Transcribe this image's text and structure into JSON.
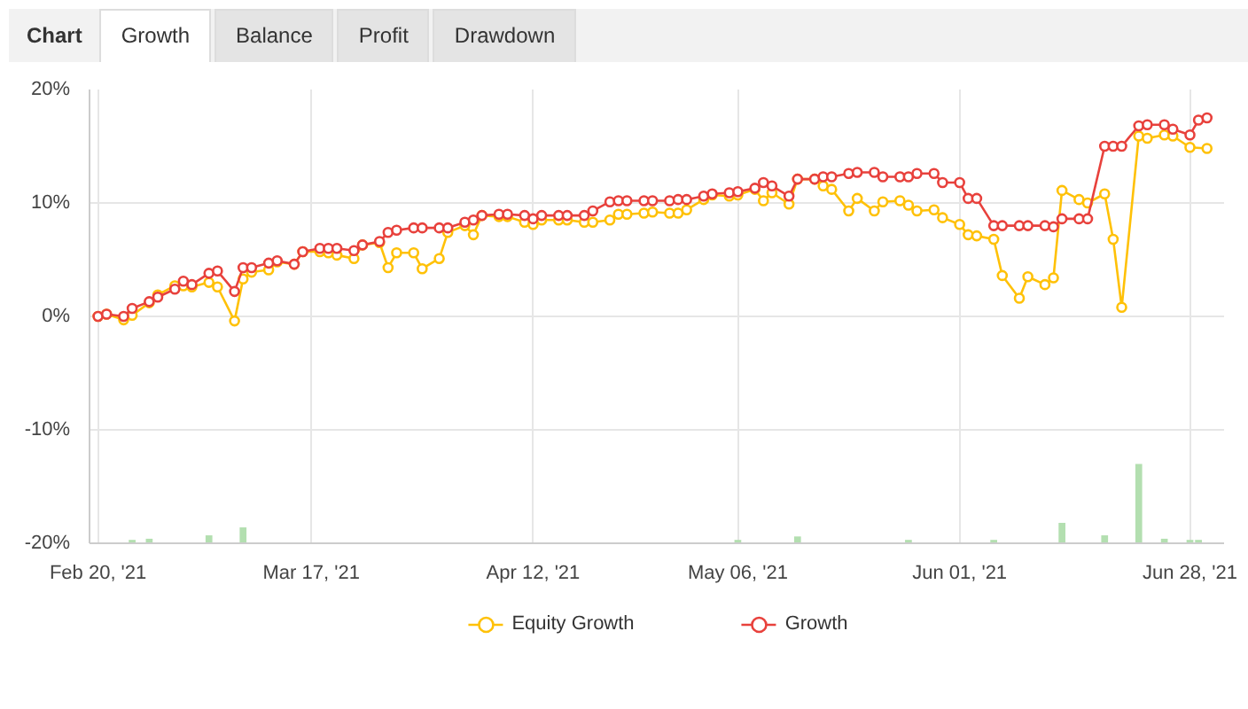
{
  "chart_data": {
    "type": "line",
    "title": "Chart",
    "annotations": [
      "Growth",
      "Balance",
      "Profit",
      "Drawdown"
    ],
    "x": [
      "2021-02-20",
      "2021-02-21",
      "2021-02-23",
      "2021-02-24",
      "2021-02-26",
      "2021-02-27",
      "2021-03-01",
      "2021-03-02",
      "2021-03-03",
      "2021-03-05",
      "2021-03-06",
      "2021-03-08",
      "2021-03-09",
      "2021-03-10",
      "2021-03-12",
      "2021-03-13",
      "2021-03-15",
      "2021-03-16",
      "2021-03-18",
      "2021-03-19",
      "2021-03-20",
      "2021-03-22",
      "2021-03-23",
      "2021-03-25",
      "2021-03-26",
      "2021-03-27",
      "2021-03-29",
      "2021-03-30",
      "2021-04-01",
      "2021-04-02",
      "2021-04-04",
      "2021-04-05",
      "2021-04-06",
      "2021-04-08",
      "2021-04-09",
      "2021-04-11",
      "2021-04-12",
      "2021-04-13",
      "2021-04-15",
      "2021-04-16",
      "2021-04-18",
      "2021-04-19",
      "2021-04-21",
      "2021-04-22",
      "2021-04-23",
      "2021-04-25",
      "2021-04-26",
      "2021-04-28",
      "2021-04-29",
      "2021-04-30",
      "2021-05-02",
      "2021-05-03",
      "2021-05-05",
      "2021-05-06",
      "2021-05-08",
      "2021-05-09",
      "2021-05-10",
      "2021-05-12",
      "2021-05-13",
      "2021-05-15",
      "2021-05-16",
      "2021-05-17",
      "2021-05-19",
      "2021-05-20",
      "2021-05-22",
      "2021-05-23",
      "2021-05-25",
      "2021-05-26",
      "2021-05-27",
      "2021-05-29",
      "2021-05-30",
      "2021-06-01",
      "2021-06-02",
      "2021-06-03",
      "2021-06-05",
      "2021-06-06",
      "2021-06-08",
      "2021-06-09",
      "2021-06-11",
      "2021-06-12",
      "2021-06-13",
      "2021-06-15",
      "2021-06-16",
      "2021-06-18",
      "2021-06-19",
      "2021-06-20",
      "2021-06-22",
      "2021-06-23",
      "2021-06-25",
      "2021-06-26",
      "2021-06-28",
      "2021-06-29",
      "2021-06-30"
    ],
    "series": [
      {
        "name": "Equity Growth",
        "color": "#ffc107",
        "values": [
          0.0,
          0.2,
          -0.3,
          0.1,
          1.2,
          1.9,
          2.7,
          2.7,
          2.6,
          3.0,
          2.6,
          -0.4,
          3.3,
          3.9,
          4.1,
          4.8,
          4.6,
          5.7,
          5.7,
          5.6,
          5.4,
          5.1,
          6.3,
          6.5,
          4.3,
          5.6,
          5.6,
          4.2,
          5.1,
          7.4,
          8.0,
          7.2,
          8.9,
          8.8,
          8.8,
          8.3,
          8.1,
          8.5,
          8.5,
          8.5,
          8.3,
          8.3,
          8.5,
          9.0,
          9.0,
          9.1,
          9.2,
          9.1,
          9.1,
          9.4,
          10.3,
          10.7,
          10.6,
          10.7,
          11.2,
          10.2,
          10.9,
          9.9,
          12.1,
          12.1,
          11.5,
          11.2,
          9.3,
          10.4,
          9.3,
          10.1,
          10.2,
          9.8,
          9.3,
          9.4,
          8.7,
          8.1,
          7.2,
          7.1,
          6.8,
          3.6,
          1.6,
          3.5,
          2.8,
          3.4,
          11.1,
          10.3,
          10.0,
          10.8,
          6.8,
          0.8,
          15.9,
          15.7,
          16.0,
          15.9,
          14.9,
          null,
          14.8
        ]
      },
      {
        "name": "Growth",
        "color": "#e8413c",
        "values": [
          0.0,
          0.2,
          0.0,
          0.7,
          1.3,
          1.7,
          2.4,
          3.1,
          2.8,
          3.8,
          4.0,
          2.2,
          4.3,
          4.3,
          4.7,
          4.9,
          4.6,
          5.7,
          6.0,
          6.0,
          6.0,
          5.8,
          6.3,
          6.6,
          7.4,
          7.6,
          7.8,
          7.8,
          7.8,
          7.8,
          8.3,
          8.5,
          8.9,
          9.0,
          9.0,
          8.9,
          8.6,
          8.9,
          8.9,
          8.9,
          8.9,
          9.3,
          10.1,
          10.2,
          10.2,
          10.2,
          10.2,
          10.2,
          10.3,
          10.3,
          10.6,
          10.8,
          10.9,
          11.0,
          11.3,
          11.8,
          11.5,
          10.6,
          12.1,
          12.1,
          12.3,
          12.3,
          12.6,
          12.7,
          12.7,
          12.3,
          12.3,
          12.3,
          12.6,
          12.6,
          11.8,
          11.8,
          10.4,
          10.4,
          8.0,
          8.0,
          8.0,
          8.0,
          8.0,
          7.9,
          8.6,
          8.6,
          8.6,
          15.0,
          15.0,
          15.0,
          16.8,
          16.9,
          16.9,
          16.5,
          16.0,
          17.3,
          17.5
        ]
      },
      {
        "type": "bar",
        "color": "#b3dfb0",
        "values": [
          null,
          null,
          null,
          0.3,
          0.4,
          null,
          null,
          null,
          null,
          0.7,
          null,
          null,
          1.4,
          null,
          null,
          null,
          null,
          null,
          null,
          null,
          null,
          null,
          null,
          null,
          null,
          null,
          null,
          null,
          null,
          null,
          null,
          null,
          null,
          null,
          null,
          null,
          null,
          null,
          null,
          null,
          null,
          null,
          null,
          null,
          null,
          null,
          null,
          null,
          null,
          null,
          null,
          null,
          null,
          0.3,
          null,
          null,
          null,
          null,
          0.6,
          null,
          null,
          null,
          null,
          null,
          null,
          null,
          null,
          0.3,
          null,
          null,
          null,
          null,
          null,
          null,
          0.3,
          null,
          null,
          null,
          null,
          null,
          1.8,
          null,
          null,
          0.7,
          null,
          null,
          7.0,
          null,
          0.4,
          null,
          0.3,
          0.3,
          null
        ],
        "base": [
          null,
          null,
          null,
          -20,
          -20,
          null,
          null,
          null,
          null,
          -20,
          null,
          null,
          -20,
          null,
          null,
          null,
          null,
          null,
          null,
          null,
          null,
          null,
          null,
          null,
          null,
          null,
          null,
          null,
          null,
          null,
          null,
          null,
          null,
          null,
          null,
          null,
          null,
          null,
          null,
          null,
          null,
          null,
          null,
          null,
          null,
          null,
          null,
          null,
          null,
          null,
          null,
          null,
          null,
          -20,
          null,
          null,
          null,
          null,
          -20,
          null,
          null,
          null,
          null,
          null,
          null,
          null,
          null,
          -20,
          null,
          null,
          null,
          null,
          null,
          null,
          -20,
          null,
          null,
          null,
          null,
          null,
          -20,
          null,
          null,
          -20,
          null,
          null,
          -20,
          null,
          -20,
          null,
          -20,
          -20,
          null
        ]
      }
    ],
    "xlim": [
      "2021-02-19",
      "2021-07-02"
    ],
    "xticks": [
      {
        "value": "2021-02-20",
        "label": "Feb 20, '21"
      },
      {
        "value": "2021-03-17",
        "label": "Mar 17, '21"
      },
      {
        "value": "2021-04-12",
        "label": "Apr 12, '21"
      },
      {
        "value": "2021-05-06",
        "label": "May 06, '21"
      },
      {
        "value": "2021-06-01",
        "label": "Jun 01, '21"
      },
      {
        "value": "2021-06-28",
        "label": "Jun 28, '21"
      }
    ],
    "ylim": [
      -20,
      20
    ],
    "yticks": [
      {
        "value": -20,
        "label": "-20%"
      },
      {
        "value": -10,
        "label": "-10%"
      },
      {
        "value": 0,
        "label": "0%"
      },
      {
        "value": 10,
        "label": "10%"
      },
      {
        "value": 20,
        "label": "20%"
      }
    ],
    "grid": true,
    "legend": "bottom",
    "marker": "circle",
    "line_style": "solid"
  }
}
